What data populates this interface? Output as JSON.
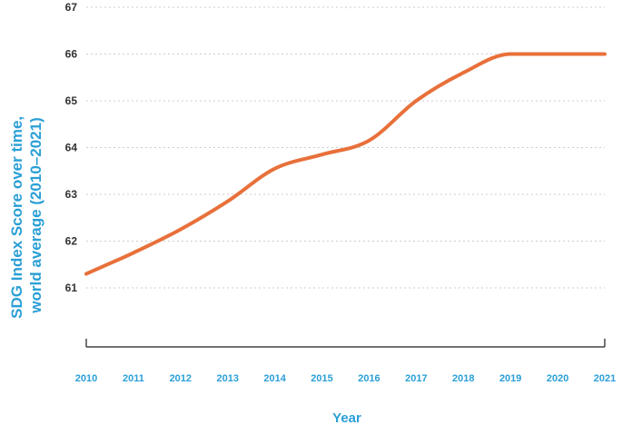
{
  "chart_data": {
    "type": "line",
    "ylabel_line1": "SDG Index Score over time,",
    "ylabel_line2": "world average (2010–2021)",
    "xlabel": "Year",
    "x": [
      2010,
      2011,
      2012,
      2013,
      2014,
      2015,
      2016,
      2017,
      2018,
      2019,
      2020,
      2021
    ],
    "y_ticks": [
      61,
      62,
      63,
      64,
      65,
      66,
      67
    ],
    "series": [
      {
        "values": [
          61.3,
          61.75,
          62.25,
          62.85,
          63.55,
          63.85,
          64.15,
          65.0,
          65.6,
          66.0,
          66.0,
          66.0
        ]
      }
    ],
    "ylim": [
      61,
      67
    ],
    "grid": "dotted horizontal",
    "colors": {
      "line": "#e8703a",
      "axis_text": "#2a9fd6",
      "tick_text": "#333333",
      "grid": "#cccccc"
    }
  }
}
